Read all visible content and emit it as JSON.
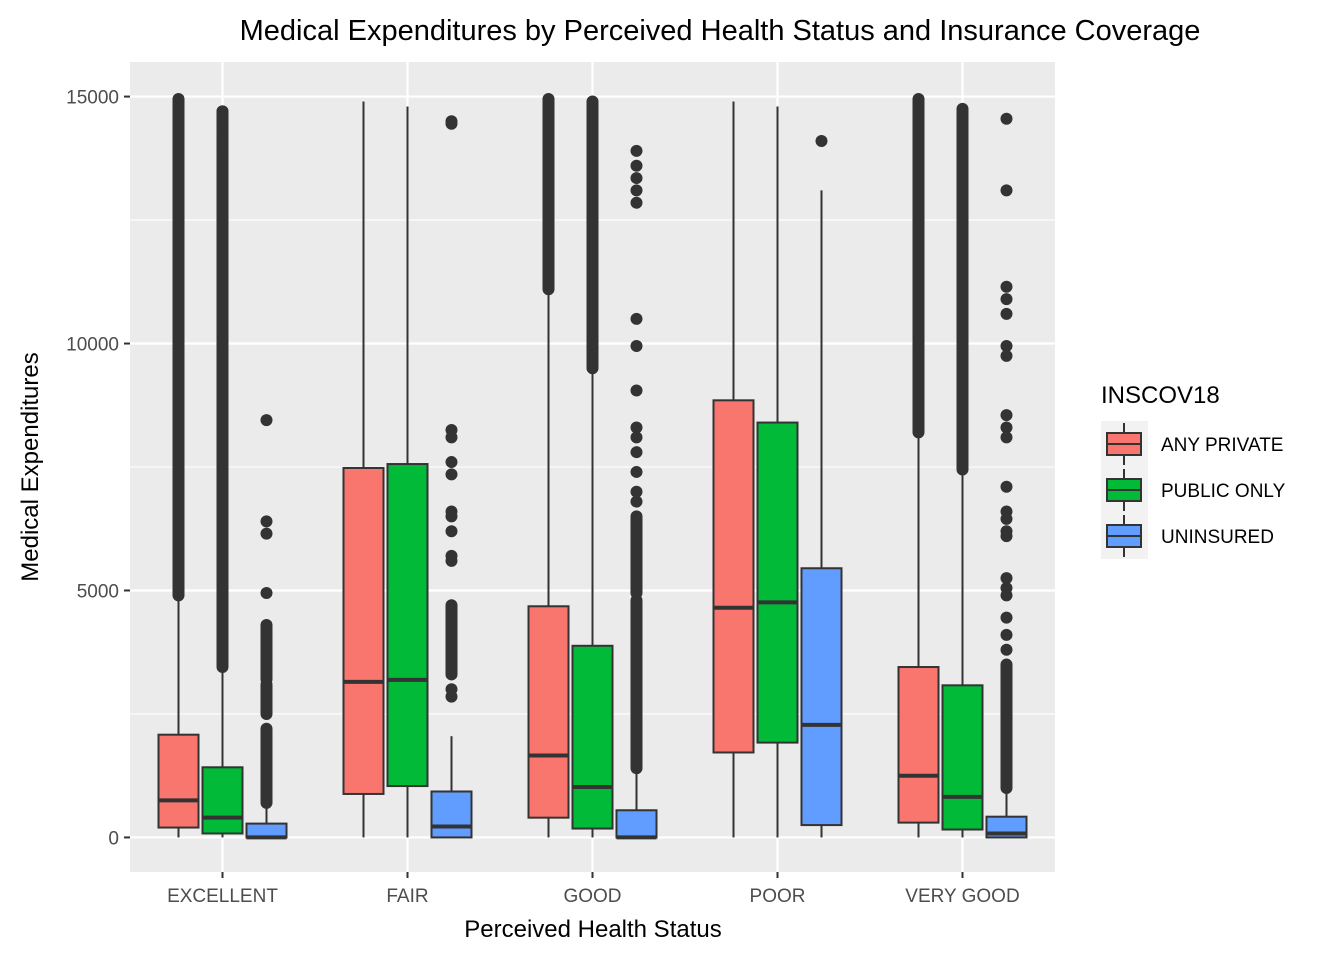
{
  "chart_data": {
    "type": "boxplot",
    "title": "Medical Expenditures by Perceived Health Status and Insurance Coverage",
    "xlabel": "Perceived Health Status",
    "ylabel": "Medical Expenditures",
    "categories": [
      "EXCELLENT",
      "FAIR",
      "GOOD",
      "POOR",
      "VERY GOOD"
    ],
    "ylim": [
      -700,
      15700
    ],
    "yticks": [
      0,
      5000,
      10000,
      15000
    ],
    "ytick_labels": [
      "0",
      "5000",
      "10000",
      "15000"
    ],
    "grid": true,
    "legend": {
      "title": "INSCOV18",
      "position": "right",
      "entries": [
        "ANY PRIVATE",
        "PUBLIC ONLY",
        "UNINSURED"
      ]
    },
    "colors": {
      "ANY PRIVATE": "#F8766D",
      "PUBLIC ONLY": "#00BA38",
      "UNINSURED": "#619CFF",
      "outline": "#333333",
      "panel": "#EBEBEB",
      "grid": "#FFFFFF"
    },
    "series": [
      {
        "name": "ANY PRIVATE",
        "boxes": [
          {
            "category": "EXCELLENT",
            "lower_whisker": 0,
            "q1": 200,
            "median": 750,
            "q3": 2080,
            "upper_whisker": 4900,
            "outlier_ranges": [
              [
                4900,
                14950
              ]
            ],
            "outliers": []
          },
          {
            "category": "FAIR",
            "lower_whisker": 0,
            "q1": 880,
            "median": 3150,
            "q3": 7480,
            "upper_whisker": 14900,
            "outlier_ranges": [],
            "outliers": []
          },
          {
            "category": "GOOD",
            "lower_whisker": 0,
            "q1": 400,
            "median": 1660,
            "q3": 4680,
            "upper_whisker": 11100,
            "outlier_ranges": [
              [
                11100,
                14950
              ]
            ],
            "outliers": []
          },
          {
            "category": "POOR",
            "lower_whisker": 0,
            "q1": 1720,
            "median": 4650,
            "q3": 8850,
            "upper_whisker": 14900,
            "outlier_ranges": [],
            "outliers": []
          },
          {
            "category": "VERY GOOD",
            "lower_whisker": 0,
            "q1": 300,
            "median": 1250,
            "q3": 3450,
            "upper_whisker": 8200,
            "outlier_ranges": [
              [
                8200,
                14950
              ]
            ],
            "outliers": []
          }
        ]
      },
      {
        "name": "PUBLIC ONLY",
        "boxes": [
          {
            "category": "EXCELLENT",
            "lower_whisker": 0,
            "q1": 80,
            "median": 400,
            "q3": 1420,
            "upper_whisker": 3450,
            "outlier_ranges": [
              [
                3450,
                14700
              ]
            ],
            "outliers": [
              14700,
              14450,
              14100,
              13900
            ]
          },
          {
            "category": "FAIR",
            "lower_whisker": 0,
            "q1": 1040,
            "median": 3190,
            "q3": 7560,
            "upper_whisker": 14800,
            "outlier_ranges": [],
            "outliers": []
          },
          {
            "category": "GOOD",
            "lower_whisker": 0,
            "q1": 180,
            "median": 1020,
            "q3": 3880,
            "upper_whisker": 9500,
            "outlier_ranges": [
              [
                9500,
                14900
              ]
            ],
            "outliers": []
          },
          {
            "category": "POOR",
            "lower_whisker": 0,
            "q1": 1920,
            "median": 4760,
            "q3": 8400,
            "upper_whisker": 14800,
            "outlier_ranges": [],
            "outliers": []
          },
          {
            "category": "VERY GOOD",
            "lower_whisker": 0,
            "q1": 160,
            "median": 820,
            "q3": 3080,
            "upper_whisker": 7450,
            "outlier_ranges": [
              [
                7450,
                14750
              ]
            ],
            "outliers": []
          }
        ]
      },
      {
        "name": "UNINSURED",
        "boxes": [
          {
            "category": "EXCELLENT",
            "lower_whisker": 0,
            "q1": 0,
            "median": 0,
            "q3": 280,
            "upper_whisker": 700,
            "outlier_ranges": [
              [
                700,
                2200
              ],
              [
                2500,
                3100
              ],
              [
                3200,
                4300
              ]
            ],
            "outliers": [
              8450,
              6400,
              6150,
              4950
            ]
          },
          {
            "category": "FAIR",
            "lower_whisker": 0,
            "q1": 0,
            "median": 220,
            "q3": 930,
            "upper_whisker": 2050,
            "outlier_ranges": [
              [
                3300,
                4700
              ]
            ],
            "outliers": [
              14500,
              14450,
              8250,
              8100,
              7600,
              7350,
              6600,
              6500,
              6200,
              5700,
              5600,
              2850,
              3000
            ]
          },
          {
            "category": "GOOD",
            "lower_whisker": 0,
            "q1": 0,
            "median": 0,
            "q3": 550,
            "upper_whisker": 1400,
            "outlier_ranges": [
              [
                1400,
                4800
              ],
              [
                4950,
                6500
              ]
            ],
            "outliers": [
              13900,
              13600,
              13350,
              13100,
              12850,
              10500,
              9950,
              9050,
              8300,
              8100,
              7800,
              7400,
              7000,
              6800
            ]
          },
          {
            "category": "POOR",
            "lower_whisker": 0,
            "q1": 250,
            "median": 2280,
            "q3": 5450,
            "upper_whisker": 13100,
            "outlier_ranges": [],
            "outliers": [
              14100
            ]
          },
          {
            "category": "VERY GOOD",
            "lower_whisker": 0,
            "q1": 0,
            "median": 80,
            "q3": 420,
            "upper_whisker": 1000,
            "outlier_ranges": [
              [
                1000,
                3500
              ]
            ],
            "outliers": [
              14550,
              13100,
              11150,
              10900,
              10600,
              9950,
              9750,
              8550,
              8300,
              8100,
              7100,
              6600,
              6450,
              6200,
              6100,
              5250,
              5050,
              4900,
              4450,
              4100,
              3800
            ]
          }
        ]
      }
    ]
  }
}
